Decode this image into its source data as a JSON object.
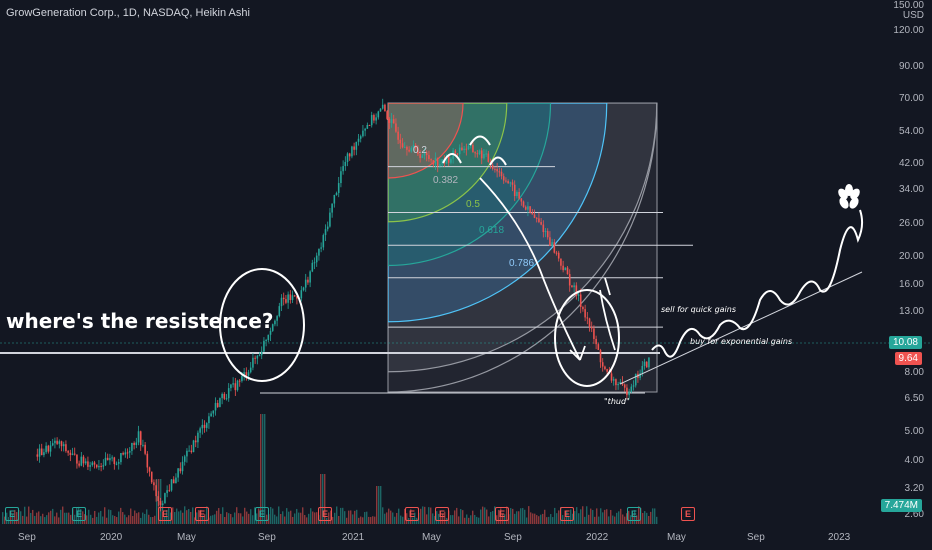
{
  "header": {
    "title": "GrowGeneration Corp., 1D, NASDAQ, Heikin Ashi"
  },
  "axis": {
    "price_scale": {
      "top_label": "150.00",
      "currency": "USD",
      "ticks": [
        "120.00",
        "90.00",
        "70.00",
        "54.00",
        "42.00",
        "34.00",
        "26.00",
        "20.00",
        "16.00",
        "13.00",
        "8.00",
        "6.50",
        "5.00",
        "4.00",
        "3.20",
        "2.60"
      ]
    },
    "time_scale": [
      "Sep",
      "2020",
      "May",
      "Sep",
      "2021",
      "May",
      "Sep",
      "2022",
      "May",
      "Sep",
      "2023"
    ]
  },
  "badges": {
    "last_price": "10.08",
    "prev_price": "9.64",
    "volume": "7.474M"
  },
  "annotations": {
    "headline": "where's the resistence?",
    "sell_note": "sell for quick gains",
    "buy_note": "buy for exponential gains",
    "thud_note": "\"thud\"",
    "fib_levels": [
      "0.382",
      "0.5",
      "0.618",
      "0.786"
    ],
    "fib_partial": "0.2"
  },
  "earnings_markers": {
    "label": "E"
  },
  "colors": {
    "background": "#131722",
    "up": "#26a69a",
    "down": "#ef5350",
    "last_badge": "#26a69a",
    "prev_badge": "#ef5350",
    "volume_badge": "#26a69a"
  },
  "chart_data": {
    "type": "candlestick",
    "scale": "log",
    "price_ylim": [
      2.3,
      150
    ],
    "x_ticks": [
      "Sep",
      "2020",
      "May",
      "Sep",
      "2021",
      "May",
      "Sep",
      "2022",
      "May",
      "Sep",
      "2023"
    ],
    "close_path": [
      {
        "t": "2019-09",
        "v": 4.2
      },
      {
        "t": "2019-10",
        "v": 4.6
      },
      {
        "t": "2019-11",
        "v": 4.0
      },
      {
        "t": "2019-12",
        "v": 3.9
      },
      {
        "t": "2020-01",
        "v": 4.0
      },
      {
        "t": "2020-02",
        "v": 4.9
      },
      {
        "t": "2020-03",
        "v": 2.8
      },
      {
        "t": "2020-04",
        "v": 3.7
      },
      {
        "t": "2020-05",
        "v": 5.0
      },
      {
        "t": "2020-06",
        "v": 6.5
      },
      {
        "t": "2020-07",
        "v": 7.5
      },
      {
        "t": "2020-08",
        "v": 9.5
      },
      {
        "t": "2020-09",
        "v": 14
      },
      {
        "t": "2020-10",
        "v": 15
      },
      {
        "t": "2020-11",
        "v": 22
      },
      {
        "t": "2020-12",
        "v": 40
      },
      {
        "t": "2021-01",
        "v": 55
      },
      {
        "t": "2021-02",
        "v": 65
      },
      {
        "t": "2021-03",
        "v": 50
      },
      {
        "t": "2021-04",
        "v": 45
      },
      {
        "t": "2021-05",
        "v": 42
      },
      {
        "t": "2021-06",
        "v": 48
      },
      {
        "t": "2021-07",
        "v": 45
      },
      {
        "t": "2021-08",
        "v": 38
      },
      {
        "t": "2021-09",
        "v": 30
      },
      {
        "t": "2021-10",
        "v": 25
      },
      {
        "t": "2021-11",
        "v": 18
      },
      {
        "t": "2021-12",
        "v": 13
      },
      {
        "t": "2022-01",
        "v": 8
      },
      {
        "t": "2022-02",
        "v": 6.9
      },
      {
        "t": "2022-03",
        "v": 8.5
      },
      {
        "t": "2022-04",
        "v": 10.08
      }
    ],
    "horizontal_lines": [
      9.64,
      10.08,
      11.5,
      17.0,
      22.0,
      28.5,
      41.0
    ],
    "projection_path": [
      10.5,
      14,
      12.5,
      15,
      14,
      17,
      15,
      19,
      17.5,
      24,
      30
    ],
    "last_price": 10.08,
    "volume_last": "7.474M"
  }
}
